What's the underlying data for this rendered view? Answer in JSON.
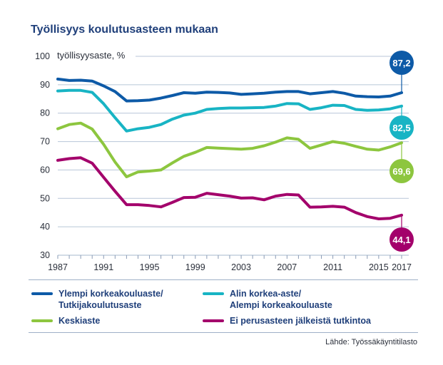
{
  "title": "Työllisyys koulutusasteen mukaan",
  "source": "Lähde: Työssäkäyntitilasto",
  "colors": {
    "ylempi": "#0d5aa7",
    "alin": "#18b4c4",
    "keskiaste": "#8dc63f",
    "ei_perus": "#a3006b",
    "grid": "#b8c6d8"
  },
  "chart_data": {
    "type": "line",
    "title": "Työllisyys koulutusasteen mukaan",
    "ylabel": "työllisyysaste, %",
    "xlabel": "",
    "ylim": [
      30,
      100
    ],
    "yticks": [
      30,
      40,
      50,
      60,
      70,
      80,
      90,
      100
    ],
    "xlim": [
      1987,
      2017
    ],
    "xticks": [
      1987,
      1991,
      1995,
      1999,
      2003,
      2007,
      2011,
      2015,
      2017
    ],
    "grid": true,
    "legend_position": "bottom",
    "x": [
      1987,
      1988,
      1989,
      1990,
      1991,
      1992,
      1993,
      1994,
      1995,
      1996,
      1997,
      1998,
      1999,
      2000,
      2001,
      2002,
      2003,
      2004,
      2005,
      2006,
      2007,
      2008,
      2009,
      2010,
      2011,
      2012,
      2013,
      2014,
      2015,
      2016,
      2017
    ],
    "series": [
      {
        "key": "ylempi",
        "name": "Ylempi korkeakouluaste/ Tutkijakoulutusaste",
        "legend_lines": [
          "Ylempi korkeakouluaste/",
          "Tutkijakoulutusaste"
        ],
        "end_label": "87,2",
        "values": [
          92.0,
          91.5,
          91.6,
          91.3,
          89.6,
          87.6,
          84.3,
          84.4,
          84.6,
          85.3,
          86.2,
          87.2,
          87.0,
          87.4,
          87.3,
          87.1,
          86.6,
          86.8,
          87.0,
          87.4,
          87.6,
          87.6,
          86.8,
          87.2,
          87.6,
          87.0,
          86.0,
          85.8,
          85.7,
          86.0,
          87.2
        ]
      },
      {
        "key": "alin",
        "name": "Alin korkea-aste/ Alempi korkeakouluaste",
        "legend_lines": [
          "Alin korkea-aste/",
          "Alempi korkeakouluaste"
        ],
        "end_label": "82,5",
        "values": [
          87.8,
          88.0,
          88.0,
          87.3,
          83.3,
          78.4,
          73.7,
          74.5,
          75.0,
          76.0,
          77.9,
          79.3,
          80.0,
          81.3,
          81.6,
          81.8,
          81.8,
          81.9,
          82.0,
          82.5,
          83.4,
          83.3,
          81.3,
          81.9,
          82.8,
          82.7,
          81.3,
          81.0,
          81.1,
          81.5,
          82.5
        ]
      },
      {
        "key": "keskiaste",
        "name": "Keskiaste",
        "legend_lines": [
          "Keskiaste"
        ],
        "end_label": "69,6",
        "values": [
          74.5,
          76.0,
          76.5,
          74.4,
          69.0,
          62.8,
          57.6,
          59.3,
          59.6,
          60.0,
          62.5,
          64.8,
          66.2,
          67.9,
          67.7,
          67.5,
          67.3,
          67.6,
          68.5,
          69.8,
          71.3,
          70.8,
          67.6,
          68.8,
          70.0,
          69.4,
          68.3,
          67.3,
          67.0,
          68.1,
          69.6
        ]
      },
      {
        "key": "ei_perus",
        "name": "Ei perusasteen jälkeistä tutkintoa",
        "legend_lines": [
          "Ei perusasteen jälkeistä tutkintoa"
        ],
        "end_label": "44,1",
        "values": [
          63.4,
          64.0,
          64.3,
          62.4,
          57.4,
          52.5,
          47.8,
          47.8,
          47.5,
          47.0,
          48.6,
          50.3,
          50.4,
          51.8,
          51.3,
          50.8,
          50.1,
          50.2,
          49.5,
          50.8,
          51.4,
          51.2,
          46.9,
          47.0,
          47.2,
          46.9,
          45.0,
          43.6,
          42.8,
          43.0,
          44.1
        ]
      }
    ]
  }
}
